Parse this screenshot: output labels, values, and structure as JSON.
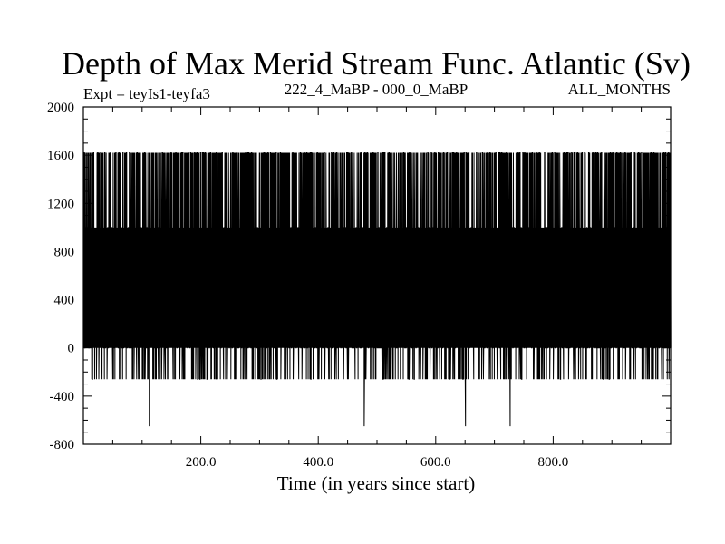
{
  "chart_data": {
    "type": "line",
    "title": "Depth of Max Merid Stream Func. Atlantic (Sv)",
    "subtitle_left": "Expt = teyIs1-teyfa3",
    "subtitle_center": "222_4_MaBP - 000_0_MaBP",
    "subtitle_right": "ALL_MONTHS",
    "xlabel": "Time (in years since start)",
    "ylabel": "",
    "xlim": [
      0,
      1000
    ],
    "ylim": [
      -800,
      2000
    ],
    "x_ticks": [
      200,
      400,
      600,
      800
    ],
    "x_tick_labels": [
      "200.0",
      "400.0",
      "600.0",
      "800.0"
    ],
    "y_ticks": [
      -800,
      -400,
      0,
      400,
      800,
      1200,
      1600,
      2000
    ],
    "y_tick_labels": [
      "-800",
      "-400",
      "0",
      "400",
      "800",
      "1200",
      "1600",
      "2000"
    ],
    "grid": false,
    "line_color": "#000000",
    "series": [
      {
        "x": [
          1,
          1000
        ],
        "discrete_levels": [
          -650,
          -260,
          0,
          1000,
          1620
        ],
        "typical_max": 1620,
        "typical_min": 0,
        "occasional_min": -260,
        "spike_lows": [
          {
            "x": 112,
            "y": -650
          },
          {
            "x": 478,
            "y": -650
          },
          {
            "x": 651,
            "y": -650
          },
          {
            "x": 727,
            "y": -650
          }
        ]
      }
    ]
  }
}
